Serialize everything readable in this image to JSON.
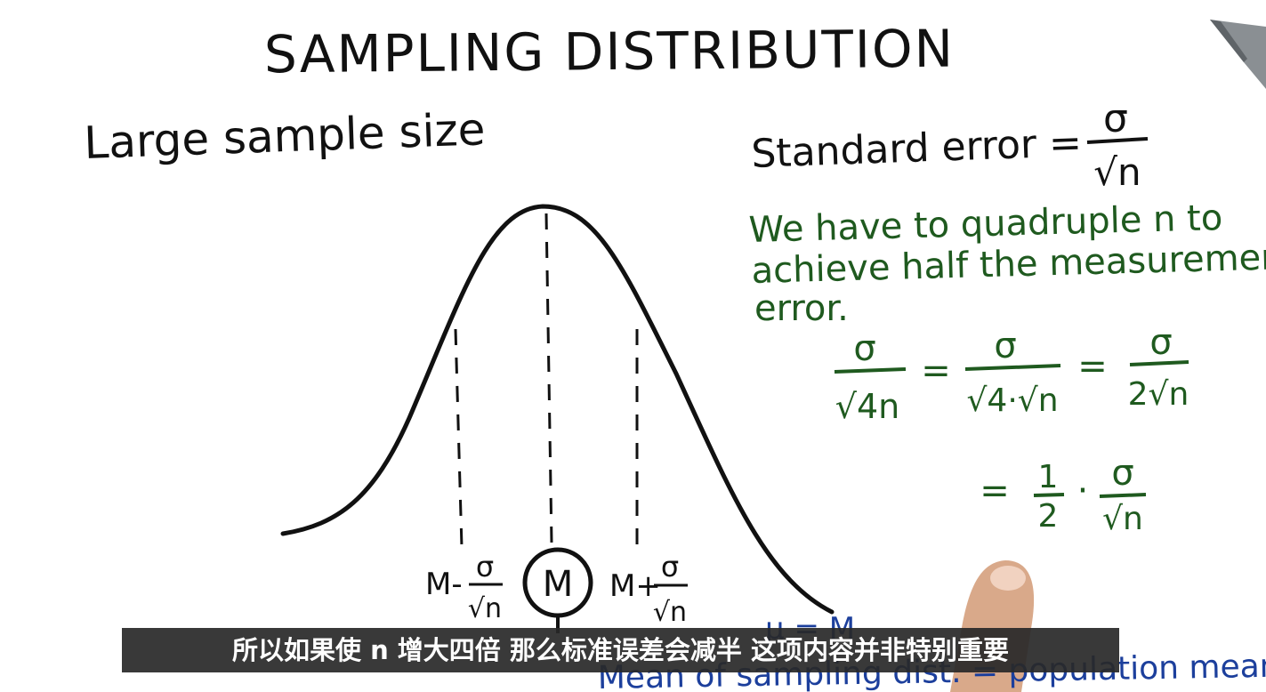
{
  "title": "SAMPLING DISTRIBUTION",
  "left_heading": "Large sample size",
  "standard_error": {
    "label": "Standard error =",
    "numerator": "σ",
    "denominator": "√n"
  },
  "note": {
    "line1": "We have to quadruple n to",
    "line2": "achieve half the measuremen",
    "line3": "error."
  },
  "derivation": {
    "f1_num": "σ",
    "f1_den": "√4n",
    "eq1": "=",
    "f2_num": "σ",
    "f2_den": "√4·√n",
    "eq2": "=",
    "f3_num": "σ",
    "f3_den": "2√n",
    "eq3": "=",
    "half_num": "1",
    "half_den": "2",
    "dot": "·",
    "f4_num": "σ",
    "f4_den": "√n"
  },
  "axis_labels": {
    "left_prefix": "M-",
    "left_num": "σ",
    "left_den": "√n",
    "center": "M",
    "right_prefix": "M+",
    "right_num": "σ",
    "right_den": "√n"
  },
  "bottom_note": {
    "mu": "μ = M",
    "text": "Mean of sampling dist. = population mean"
  },
  "subtitle": "所以如果使 n 增大四倍 那么标准误差会减半 这项内容并非特别重要"
}
